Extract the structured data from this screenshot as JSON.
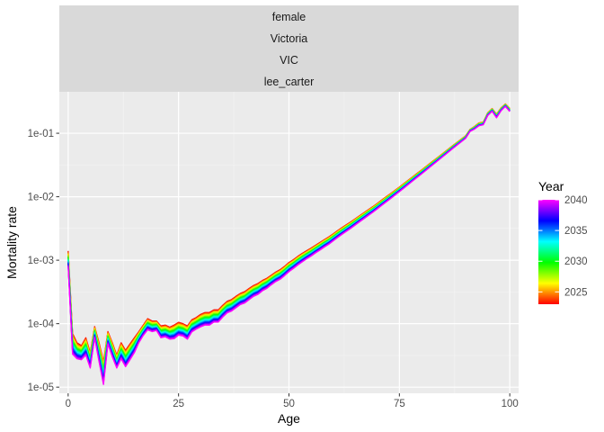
{
  "chart_data": {
    "type": "line",
    "facet_strip": [
      "female",
      "Victoria",
      "VIC",
      "lee_carter"
    ],
    "xlabel": "Age",
    "ylabel": "Mortality rate",
    "xlim": [
      -2,
      102
    ],
    "ylim": [
      8e-06,
      0.45
    ],
    "y_scale": "log10",
    "x_ticks": [
      0,
      25,
      50,
      75,
      100
    ],
    "x_tick_labels": [
      "0",
      "25",
      "50",
      "75",
      "100"
    ],
    "y_ticks": [
      1e-05,
      0.0001,
      0.001,
      0.01,
      0.1
    ],
    "y_tick_labels": [
      "1e-05",
      "1e-04",
      "1e-03",
      "1e-02",
      "1e-01"
    ],
    "grid": true,
    "legend": {
      "title": "Year",
      "placement": "right",
      "range": [
        2023,
        2040
      ],
      "labels": [
        "2025",
        "2030",
        "2035",
        "2040"
      ],
      "label_values": [
        2025,
        2030,
        2035,
        2040
      ],
      "colors": [
        "#ff0000",
        "#ffff00",
        "#00ff00",
        "#00ffff",
        "#0000ff",
        "#ff00ff"
      ]
    },
    "series_years": [
      2023,
      2024,
      2025,
      2026,
      2027,
      2028,
      2029,
      2030,
      2031,
      2032,
      2033,
      2034,
      2035,
      2036,
      2037,
      2038,
      2039,
      2040
    ],
    "ages": [
      0,
      1,
      2,
      3,
      4,
      5,
      6,
      7,
      8,
      9,
      10,
      11,
      12,
      13,
      14,
      15,
      16,
      17,
      18,
      19,
      20,
      21,
      22,
      23,
      24,
      25,
      26,
      27,
      28,
      29,
      30,
      31,
      32,
      33,
      34,
      35,
      36,
      37,
      38,
      39,
      40,
      41,
      42,
      43,
      44,
      45,
      46,
      47,
      48,
      49,
      50,
      51,
      52,
      53,
      54,
      55,
      56,
      57,
      58,
      59,
      60,
      61,
      62,
      63,
      64,
      65,
      66,
      67,
      68,
      69,
      70,
      71,
      72,
      73,
      74,
      75,
      76,
      77,
      78,
      79,
      80,
      81,
      82,
      83,
      84,
      85,
      86,
      87,
      88,
      89,
      90,
      91,
      92,
      93,
      94,
      95,
      96,
      97,
      98,
      99,
      100
    ],
    "series_first_year": [
      0.0014,
      7e-05,
      5e-05,
      4.5e-05,
      6e-05,
      3.5e-05,
      9e-05,
      5e-05,
      2.5e-05,
      7.5e-05,
      5e-05,
      3.2e-05,
      5e-05,
      3.8e-05,
      4.8e-05,
      6e-05,
      7.5e-05,
      9.5e-05,
      0.00012,
      0.00011,
      0.00011,
      9.2e-05,
      9.5e-05,
      8.8e-05,
      9.5e-05,
      0.000105,
      0.0001,
      9.2e-05,
      0.000115,
      0.000125,
      0.00014,
      0.00015,
      0.00015,
      0.000165,
      0.000165,
      0.000195,
      0.000225,
      0.00024,
      0.00027,
      0.0003,
      0.00032,
      0.00036,
      0.0004,
      0.00043,
      0.00048,
      0.00052,
      0.00058,
      0.00065,
      0.00071,
      0.0008,
      0.00092,
      0.00102,
      0.00115,
      0.00128,
      0.00141,
      0.00155,
      0.00172,
      0.0019,
      0.00211,
      0.00232,
      0.0026,
      0.00292,
      0.00326,
      0.00362,
      0.00401,
      0.00449,
      0.00503,
      0.00561,
      0.00626,
      0.00698,
      0.00785,
      0.00885,
      0.00997,
      0.0112,
      0.0126,
      0.0142,
      0.0161,
      0.0182,
      0.0206,
      0.0233,
      0.0263,
      0.0298,
      0.0338,
      0.0382,
      0.0433,
      0.0491,
      0.0556,
      0.0631,
      0.0714,
      0.0806,
      0.0912,
      0.115,
      0.128,
      0.145,
      0.15,
      0.21,
      0.245,
      0.2,
      0.25,
      0.29,
      0.245,
      0.37
    ],
    "series_last_year": [
      0.0008,
      3.3e-05,
      2.8e-05,
      2.7e-05,
      3.2e-05,
      2e-05,
      6e-05,
      2.5e-05,
      1.1e-05,
      4.8e-05,
      3e-05,
      2e-05,
      2.8e-05,
      2.1e-05,
      2.7e-05,
      3.5e-05,
      5e-05,
      6.5e-05,
      8e-05,
      7.5e-05,
      7.8e-05,
      6e-05,
      6.2e-05,
      5.7e-05,
      5.8e-05,
      6.6e-05,
      6.4e-05,
      5.7e-05,
      7.4e-05,
      8.2e-05,
      8.9e-05,
      9.5e-05,
      9.5e-05,
      0.000106,
      0.000106,
      0.000127,
      0.000148,
      0.000158,
      0.000178,
      0.0002,
      0.000212,
      0.00024,
      0.00027,
      0.00029,
      0.00033,
      0.00036,
      0.00041,
      0.00046,
      0.0005,
      0.00057,
      0.00066,
      0.00074,
      0.00084,
      0.00094,
      0.00105,
      0.00116,
      0.0013,
      0.00144,
      0.00161,
      0.00178,
      0.00201,
      0.00227,
      0.00255,
      0.00285,
      0.00318,
      0.00358,
      0.00403,
      0.00452,
      0.00508,
      0.00569,
      0.00644,
      0.00729,
      0.00826,
      0.00934,
      0.0106,
      0.012,
      0.0136,
      0.0155,
      0.0177,
      0.0201,
      0.0228,
      0.026,
      0.0296,
      0.0337,
      0.0384,
      0.0437,
      0.0498,
      0.0568,
      0.0646,
      0.0732,
      0.0831,
      0.107,
      0.116,
      0.131,
      0.136,
      0.19,
      0.222,
      0.175,
      0.225,
      0.265,
      0.22,
      0.32
    ]
  }
}
